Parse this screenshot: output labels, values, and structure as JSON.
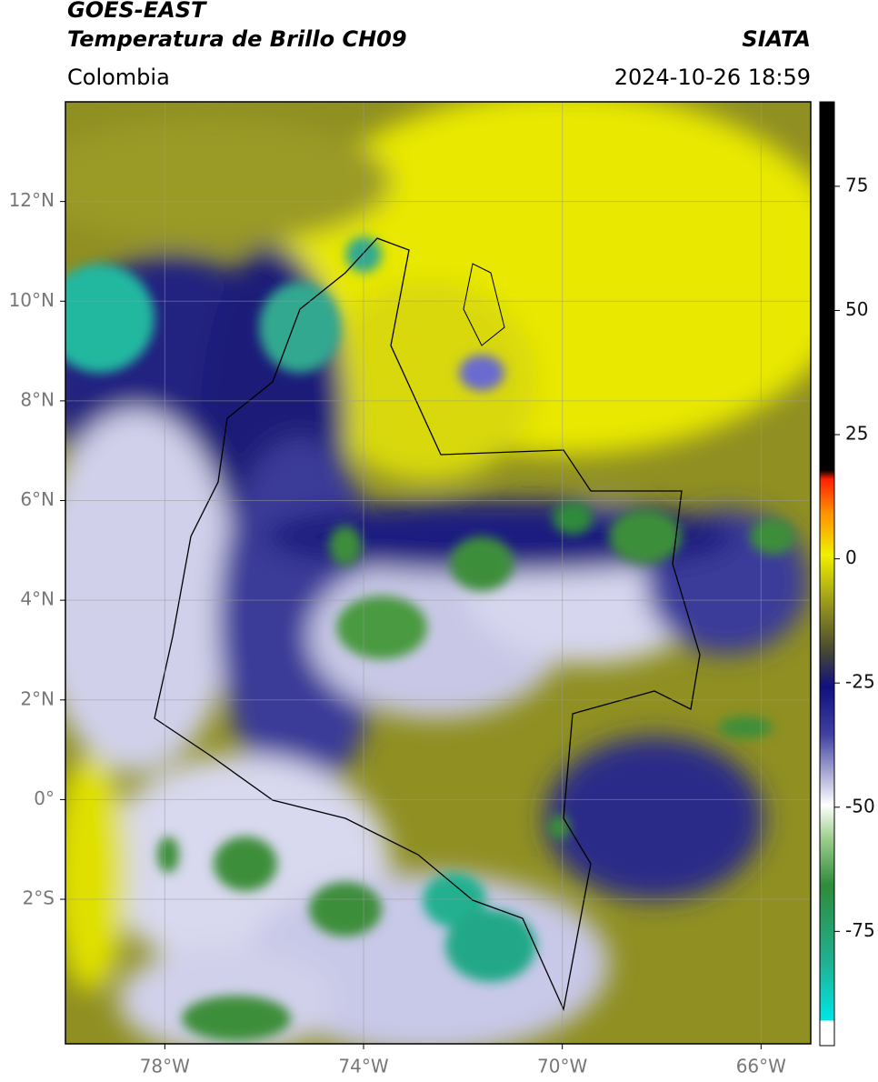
{
  "header": {
    "title": "GOES-EAST",
    "subtitle": "Temperatura de Brillo CH09",
    "region": "Colombia",
    "source": "SIATA",
    "datetime": "2024-10-26 18:59"
  },
  "map": {
    "type": "map",
    "xlim": [
      -80,
      -65
    ],
    "ylim": [
      -4.9,
      14
    ],
    "grid": true,
    "xticks": [
      {
        "value": -78,
        "label": "78°W"
      },
      {
        "value": -74,
        "label": "74°W"
      },
      {
        "value": -70,
        "label": "70°W"
      },
      {
        "value": -66,
        "label": "66°W"
      }
    ],
    "yticks": [
      {
        "value": 12,
        "label": "12°N"
      },
      {
        "value": 10,
        "label": "10°N"
      },
      {
        "value": 8,
        "label": "8°N"
      },
      {
        "value": 6,
        "label": "6°N"
      },
      {
        "value": 4,
        "label": "4°N"
      },
      {
        "value": 2,
        "label": "2°N"
      },
      {
        "value": 0,
        "label": "0°"
      },
      {
        "value": -2,
        "label": "2°S"
      }
    ]
  },
  "colorbar": {
    "clim": [
      -98,
      92
    ],
    "ticks": [
      75,
      50,
      25,
      0,
      -25,
      -50,
      -75
    ]
  }
}
